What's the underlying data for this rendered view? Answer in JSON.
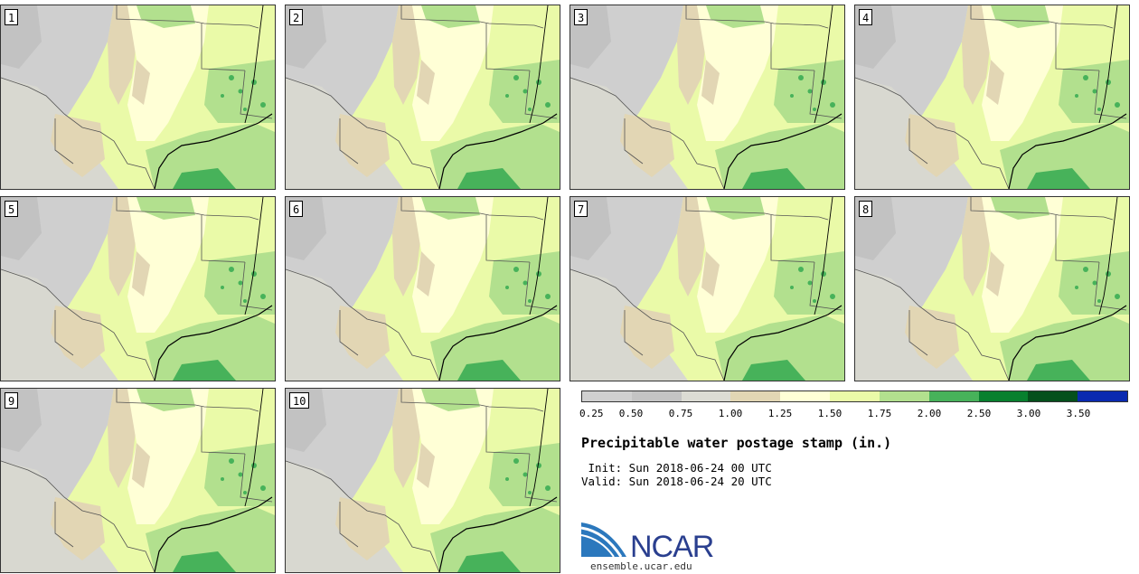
{
  "panels": [
    {
      "label": "1"
    },
    {
      "label": "2"
    },
    {
      "label": "3"
    },
    {
      "label": "4"
    },
    {
      "label": "5"
    },
    {
      "label": "6"
    },
    {
      "label": "7"
    },
    {
      "label": "8"
    },
    {
      "label": "9"
    },
    {
      "label": "10"
    }
  ],
  "legend": {
    "colors": [
      "#d0d0d0",
      "#c4c4c4",
      "#dcdcd4",
      "#e2d6b4",
      "#ffffd6",
      "#eafaa8",
      "#b2e08e",
      "#47b25a",
      "#08802e",
      "#05501c",
      "#0a2ab0"
    ],
    "ticks": [
      "0.25",
      "0.50",
      "0.75",
      "1.00",
      "1.25",
      "1.50",
      "1.75",
      "2.00",
      "2.50",
      "3.00",
      "3.50"
    ]
  },
  "title": "Precipitable water postage stamp (in.)",
  "init": " Init: Sun 2018-06-24 00 UTC",
  "valid": "Valid: Sun 2018-06-24 20 UTC",
  "logo": {
    "text": "NCAR",
    "url": "ensemble.ucar.edu"
  }
}
